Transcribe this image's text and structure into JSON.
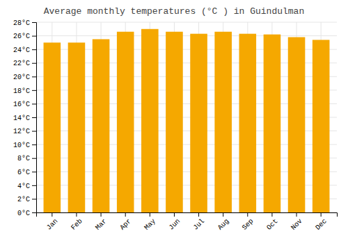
{
  "chart_data": {
    "type": "bar",
    "title": "Average monthly temperatures (°C ) in Guindulman",
    "categories": [
      "Jan",
      "Feb",
      "Mar",
      "Apr",
      "May",
      "Jun",
      "Jul",
      "Aug",
      "Sep",
      "Oct",
      "Nov",
      "Dec"
    ],
    "values": [
      25.0,
      25.0,
      25.5,
      26.6,
      27.0,
      26.6,
      26.3,
      26.6,
      26.3,
      26.2,
      25.8,
      25.4
    ],
    "color": "#F5A800",
    "ylim": [
      0,
      28
    ],
    "yticks": [
      {
        "value": 0,
        "label": "0°C"
      },
      {
        "value": 2,
        "label": "2°C"
      },
      {
        "value": 4,
        "label": "4°C"
      },
      {
        "value": 6,
        "label": "6°C"
      },
      {
        "value": 8,
        "label": "8°C"
      },
      {
        "value": 10,
        "label": "10°C"
      },
      {
        "value": 12,
        "label": "12°C"
      },
      {
        "value": 14,
        "label": "14°C"
      },
      {
        "value": 16,
        "label": "16°C"
      },
      {
        "value": 18,
        "label": "18°C"
      },
      {
        "value": 20,
        "label": "20°C"
      },
      {
        "value": 22,
        "label": "22°C"
      },
      {
        "value": 24,
        "label": "24°C"
      },
      {
        "value": 26,
        "label": "26°C"
      },
      {
        "value": 28,
        "label": "28°C"
      }
    ],
    "grid": true
  }
}
